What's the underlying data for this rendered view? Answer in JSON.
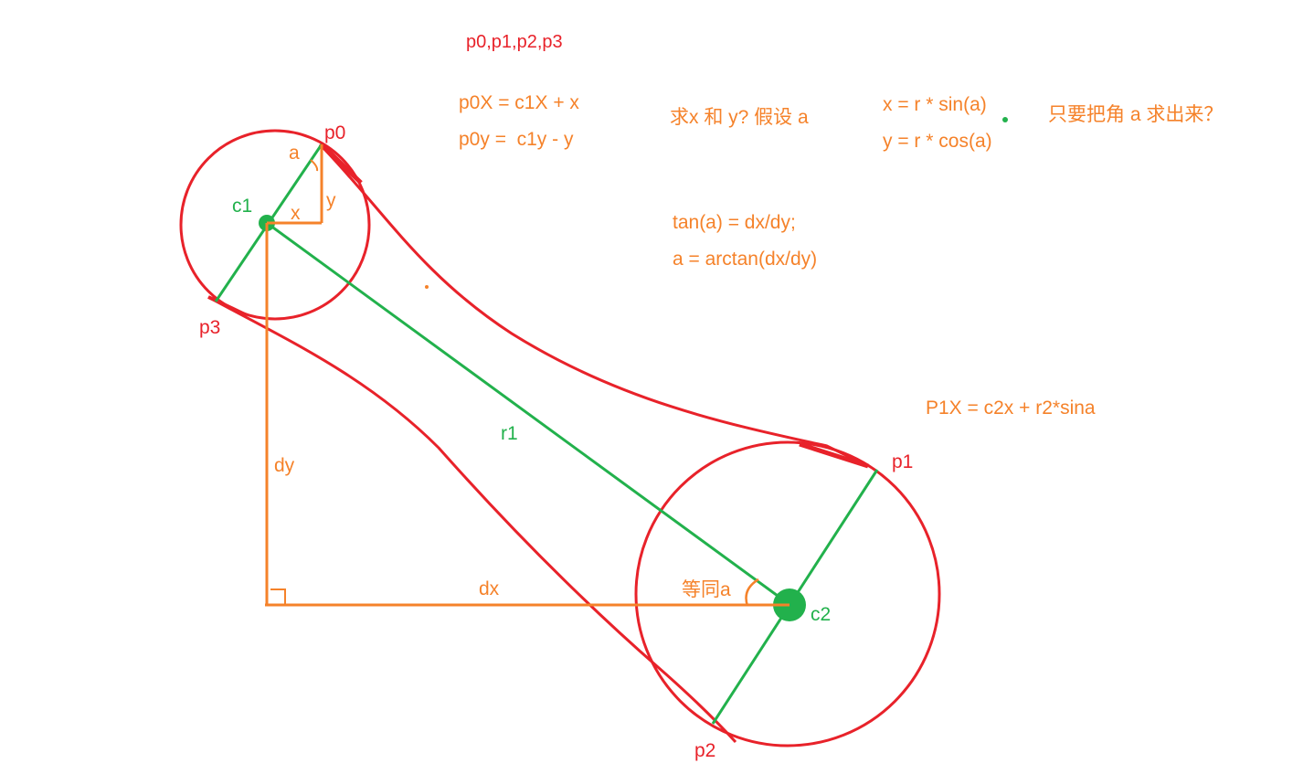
{
  "colors": {
    "red": "#e8222a",
    "green": "#22b14c",
    "orange": "#f5822a",
    "background": "#ffffff"
  },
  "points": {
    "p0": "p0",
    "p1": "p1",
    "p2": "p2",
    "p3": "p3",
    "c1": "c1",
    "c2": "c2"
  },
  "labels": {
    "a": "a",
    "x": "x",
    "y": "y",
    "r1": "r1",
    "dy": "dy",
    "dx": "dx",
    "same_angle": "等同a"
  },
  "notes": {
    "points_list": "p0,p1,p2,p3",
    "p0x_formula": "p0X = c1X + x",
    "p0y_formula": "p0y =  c1y - y",
    "question": "求x 和 y?  假设 a",
    "x_formula": "x = r * sin(a)",
    "y_formula": "y = r * cos(a)",
    "goal": "只要把角 a 求出来？",
    "tan_formula": "tan(a) = dx/dy;",
    "arctan_formula": "a = arctan(dx/dy)",
    "p1x_formula": "P1X = c2x + r2*sina"
  }
}
